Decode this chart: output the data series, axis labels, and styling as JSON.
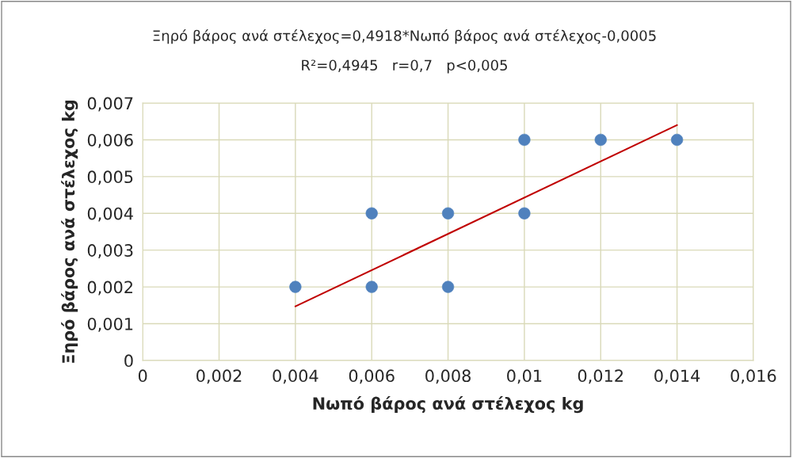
{
  "chart_data": {
    "type": "scatter",
    "title": "Ξηρό βάρος ανά στέλεχος=0,4918*Νωπό βάρος ανά στέλεχος-0,0005",
    "subtitle": "R²=0,4945   r=0,7   p<0,005",
    "xlabel": "Νωπό βάρος ανά στέλεχος kg",
    "ylabel": "Ξηρό βάρος ανά στέλεχος kg",
    "series": [
      {
        "color": "#4f81bd",
        "marker": "circle",
        "x": [
          0.004,
          0.006,
          0.006,
          0.008,
          0.008,
          0.01,
          0.01,
          0.012,
          0.014
        ],
        "values": [
          0.002,
          0.002,
          0.004,
          0.002,
          0.004,
          0.004,
          0.006,
          0.006,
          0.006
        ]
      },
      {
        "type": "line",
        "color": "#c00000",
        "marker": "none",
        "line_style": "solid",
        "x": [
          0.004,
          0.014
        ],
        "values": [
          0.00147,
          0.0064
        ]
      }
    ],
    "xlim": [
      0,
      0.016
    ],
    "xticks": [
      0,
      {
        "value": 0.002,
        "label": "0,002"
      },
      {
        "value": 0.004,
        "label": "0,004"
      },
      {
        "value": 0.006,
        "label": "0,006"
      },
      {
        "value": 0.008,
        "label": "0,008"
      },
      {
        "value": 0.01,
        "label": "0,01"
      },
      {
        "value": 0.012,
        "label": "0,012"
      },
      {
        "value": 0.014,
        "label": "0,014"
      },
      {
        "value": 0.016,
        "label": "0,016"
      }
    ],
    "ylim": [
      0,
      0.007
    ],
    "yticks": [
      0,
      {
        "value": 0.001,
        "label": "0,001"
      },
      {
        "value": 0.002,
        "label": "0,002"
      },
      {
        "value": 0.003,
        "label": "0,003"
      },
      {
        "value": 0.004,
        "label": "0,004"
      },
      {
        "value": 0.005,
        "label": "0,005"
      },
      {
        "value": 0.006,
        "label": "0,006"
      },
      {
        "value": 0.007,
        "label": "0,007"
      }
    ],
    "grid": true,
    "legend": false
  }
}
